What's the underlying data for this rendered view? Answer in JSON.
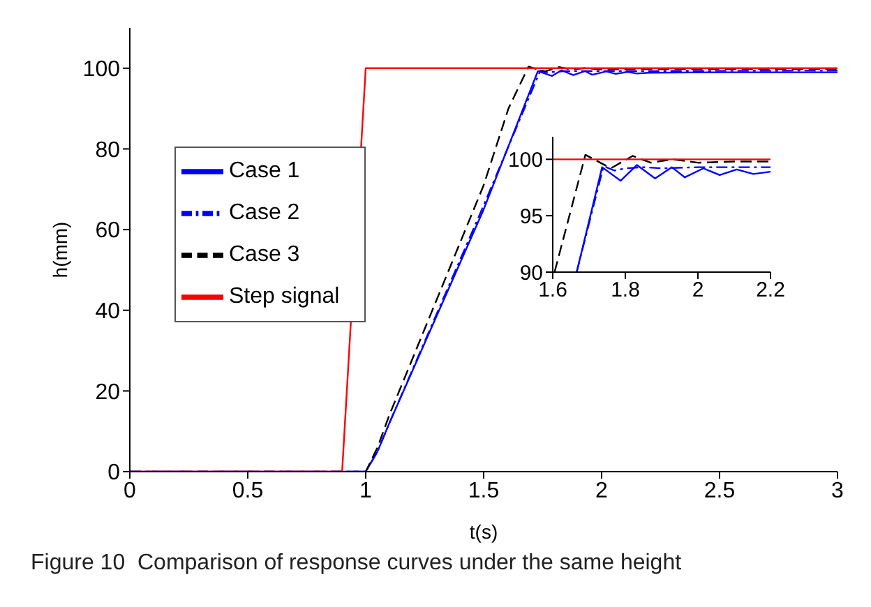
{
  "chart_data": [
    {
      "type": "line",
      "xlabel": "t(s)",
      "ylabel": "h(mm)",
      "xlim": [
        0,
        3
      ],
      "ylim": [
        0,
        110
      ],
      "xticks": [
        0,
        0.5,
        1,
        1.5,
        2,
        2.5,
        3
      ],
      "yticks": [
        0,
        20,
        40,
        60,
        80,
        100
      ],
      "grid": false,
      "legend": "left",
      "marker": "none",
      "annotations": [
        "Figure 10  Comparison of response curves under the same height"
      ],
      "series": [
        {
          "name": "Case 1",
          "color": "#0000ff",
          "line_style": "solid",
          "x": [
            0,
            1.0,
            1.05,
            1.1,
            1.5,
            1.73,
            1.79,
            1.83,
            1.88,
            1.93,
            1.96,
            2.02,
            2.06,
            2.11,
            2.15,
            2.2,
            2.5,
            3
          ],
          "values": [
            0,
            0,
            5,
            12,
            65,
            99.3,
            98.1,
            99.5,
            98.3,
            99.3,
            98.4,
            99.2,
            98.6,
            99.1,
            98.7,
            98.9,
            99,
            99
          ]
        },
        {
          "name": "Case 2",
          "color": "#0000ff",
          "line_style": "dotted",
          "x": [
            0,
            1.0,
            1.05,
            1.1,
            1.5,
            1.74,
            1.77,
            1.85,
            2.2,
            3
          ],
          "values": [
            0,
            0,
            5,
            12,
            66,
            99.4,
            99.0,
            99.3,
            99.3,
            99.4
          ]
        },
        {
          "name": "Case 3",
          "color": "#000000",
          "line_style": "dashed",
          "x": [
            0,
            1.0,
            1.05,
            1.1,
            1.5,
            1.605,
            1.69,
            1.76,
            1.82,
            1.87,
            1.93,
            2.0,
            2.2,
            3
          ],
          "values": [
            0,
            0,
            6,
            14,
            71,
            90,
            100.4,
            99.2,
            100.3,
            99.7,
            100.0,
            99.7,
            99.8,
            99.8
          ]
        },
        {
          "name": "Step signal",
          "color": "#ff0000",
          "line_style": "solid",
          "x": [
            0,
            0.9,
            1.0,
            3
          ],
          "values": [
            0,
            0,
            100,
            100
          ]
        }
      ]
    },
    {
      "type": "line",
      "xlim": [
        1.6,
        2.2
      ],
      "ylim": [
        90,
        102
      ],
      "xticks": [
        1.6,
        1.8,
        2,
        2.2
      ],
      "yticks": [
        90,
        95,
        100
      ],
      "grid": false,
      "marker": "none",
      "series": [
        {
          "color": "#0000ff",
          "line_style": "solid",
          "x": [
            1.666,
            1.736,
            1.787,
            1.832,
            1.882,
            1.928,
            1.964,
            2.015,
            2.06,
            2.107,
            2.153,
            2.2
          ],
          "values": [
            90,
            99.3,
            98.1,
            99.5,
            98.3,
            99.3,
            98.4,
            99.2,
            98.6,
            99.1,
            98.7,
            98.9
          ]
        },
        {
          "color": "#0000ff",
          "line_style": "dotted",
          "x": [
            1.666,
            1.74,
            1.77,
            1.8,
            1.85,
            1.9,
            2.0,
            2.1,
            2.2
          ],
          "values": [
            90,
            99.4,
            99.0,
            99.2,
            99.3,
            99.2,
            99.3,
            99.3,
            99.3
          ]
        },
        {
          "color": "#000000",
          "line_style": "dashed",
          "x": [
            1.605,
            1.69,
            1.76,
            1.82,
            1.87,
            1.93,
            2.0,
            2.1,
            2.2
          ],
          "values": [
            90,
            100.4,
            99.2,
            100.3,
            99.7,
            100.0,
            99.7,
            99.8,
            99.8
          ]
        },
        {
          "color": "#ff0000",
          "line_style": "solid",
          "x": [
            1.6,
            2.2
          ],
          "values": [
            100,
            100
          ]
        }
      ]
    }
  ]
}
